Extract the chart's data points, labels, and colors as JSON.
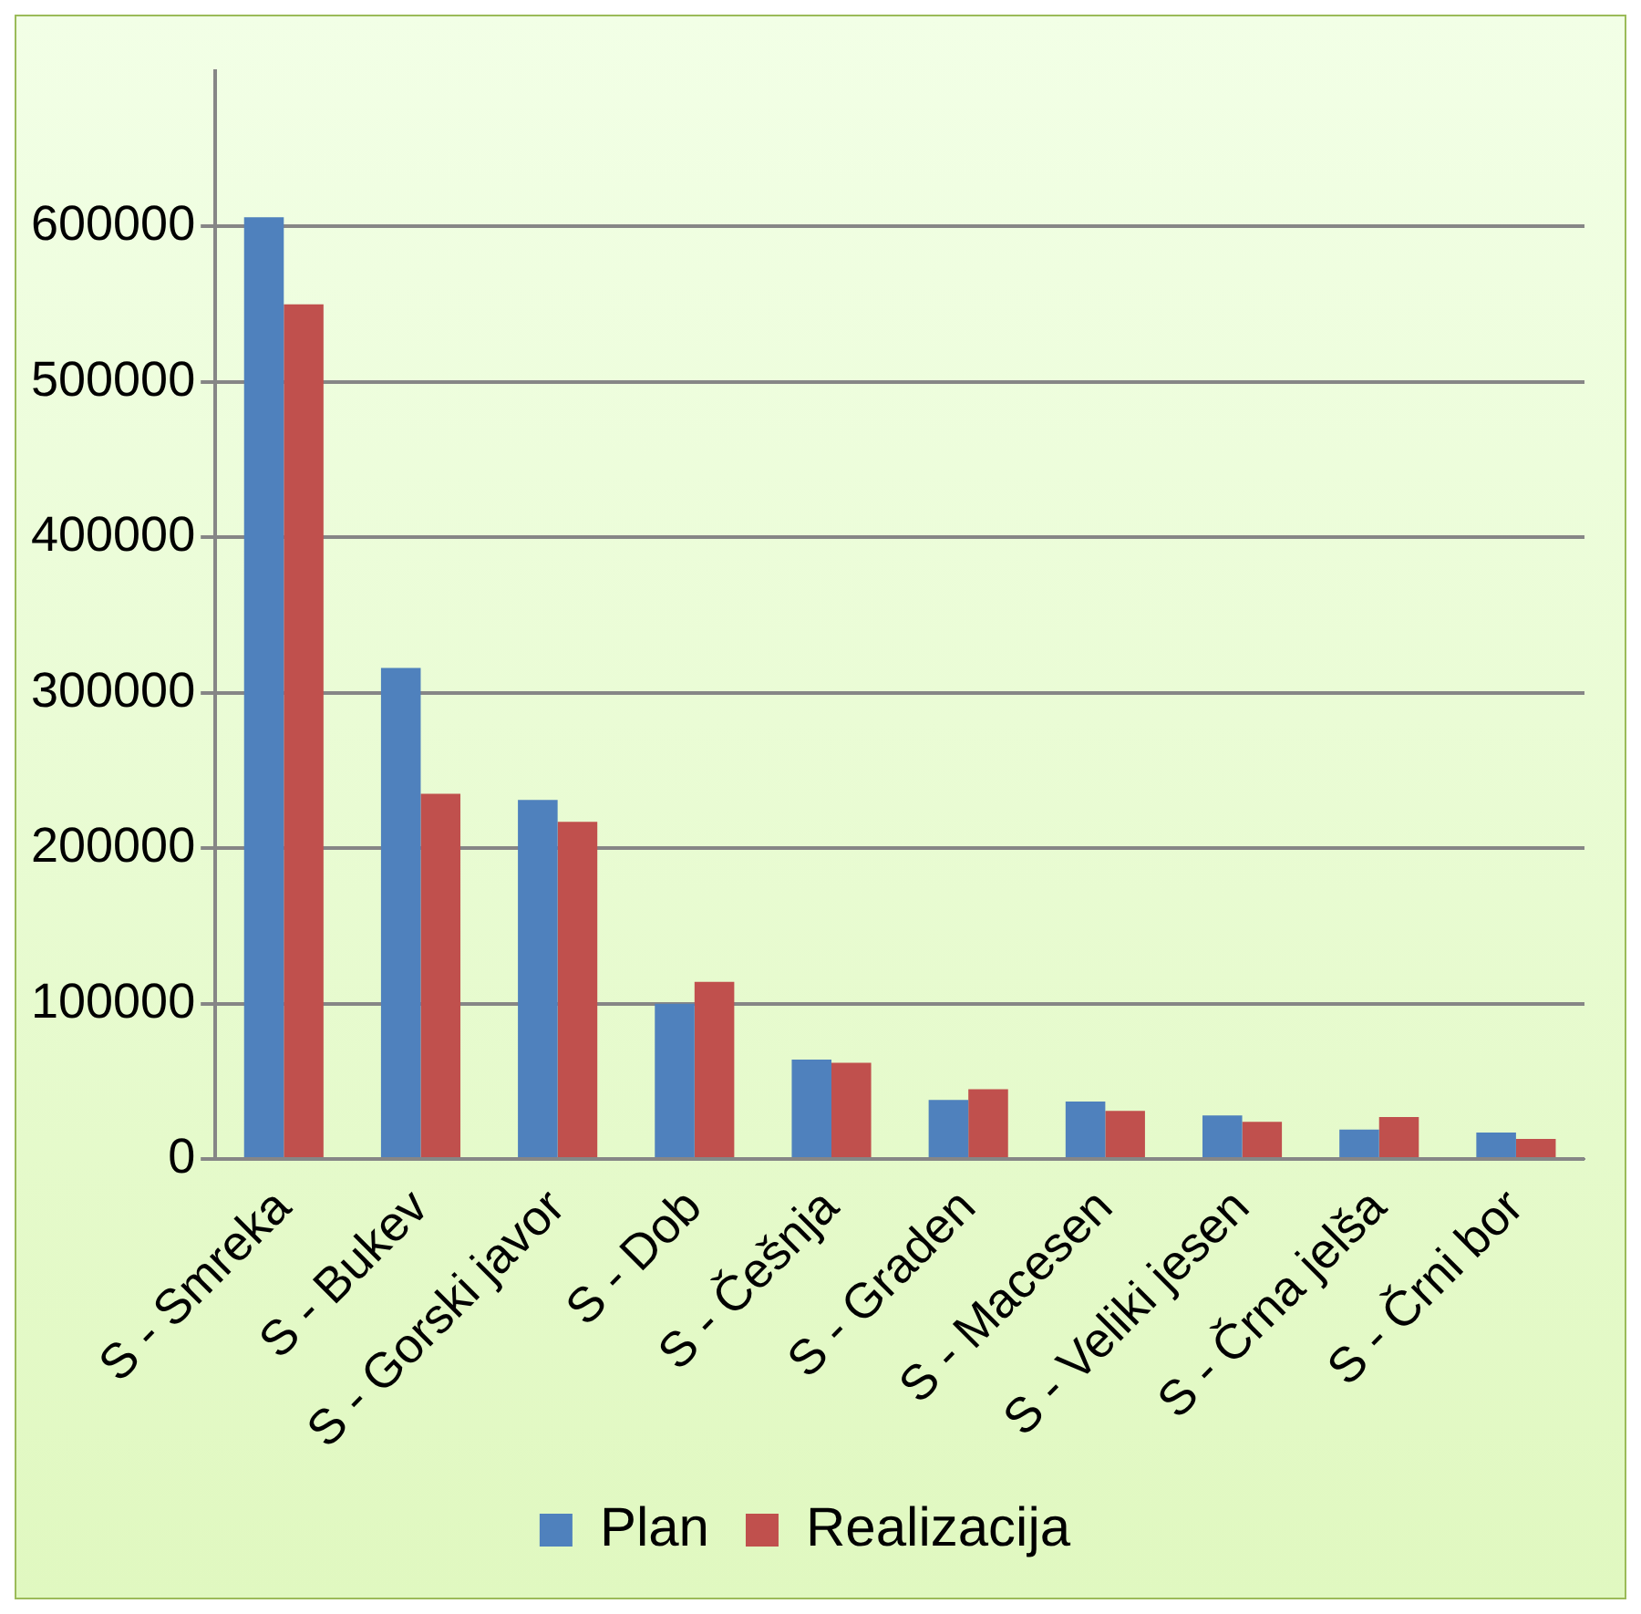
{
  "chart_data": {
    "type": "bar",
    "categories": [
      "S - Smreka",
      "S - Bukev",
      "S - Gorski javor",
      "S - Dob",
      "S - Češnja",
      "S - Graden",
      "S - Macesen",
      "S - Veliki jesen",
      "S - Črna jelša",
      "S - Črni bor"
    ],
    "series": [
      {
        "name": "Plan",
        "color": "#4f81bd",
        "values": [
          606000,
          316000,
          231000,
          100000,
          64000,
          38000,
          37000,
          28000,
          19000,
          17000
        ]
      },
      {
        "name": "Realizacija",
        "color": "#c0504d",
        "values": [
          550000,
          235000,
          217000,
          114000,
          62000,
          45000,
          31000,
          24000,
          27000,
          13000
        ]
      }
    ],
    "ylim": [
      0,
      700000
    ],
    "yticks": [
      0,
      100000,
      200000,
      300000,
      400000,
      500000,
      600000
    ],
    "grid": "y",
    "legend": "bottom"
  }
}
